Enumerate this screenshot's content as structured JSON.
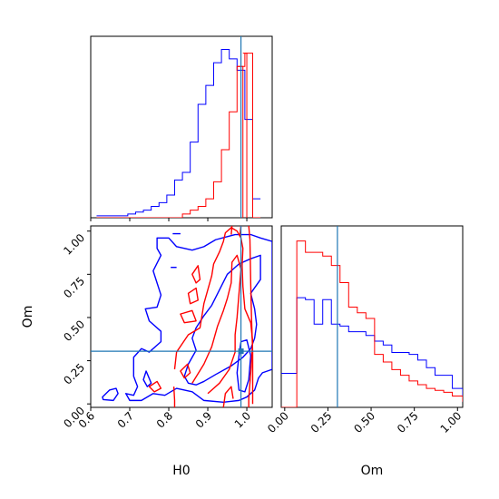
{
  "chart_data": {
    "type": "corner",
    "colors": {
      "series_a": "#0000ff",
      "series_b": "#ff0000",
      "truth": "#1f77b4"
    },
    "truth": {
      "H0": 0.985,
      "Om": 0.305
    },
    "labels": {
      "H0": "H0",
      "Om": "Om"
    },
    "ticks": {
      "H0": [
        "0.6",
        "0.7",
        "0.8",
        "0.9",
        "1.0"
      ],
      "Om": [
        "0.00",
        "0.25",
        "0.50",
        "0.75",
        "1.00"
      ]
    },
    "h0_hist": {
      "range": [
        0.6,
        1.065
      ],
      "bin_edges": [
        0.615,
        0.635,
        0.655,
        0.675,
        0.695,
        0.715,
        0.735,
        0.755,
        0.775,
        0.795,
        0.815,
        0.835,
        0.855,
        0.875,
        0.895,
        0.915,
        0.935,
        0.955,
        0.975,
        0.995,
        1.015,
        1.035
      ],
      "blue": [
        1,
        1,
        1,
        1,
        2,
        3,
        4,
        6,
        8,
        12,
        20,
        24,
        40,
        60,
        70,
        82,
        89,
        84,
        78,
        52,
        10
      ],
      "red": [
        0,
        0,
        0,
        0,
        0,
        0,
        0,
        0,
        0,
        0,
        0,
        2,
        4,
        6,
        10,
        19,
        36,
        56,
        80,
        87,
        0
      ],
      "red_tail": {
        "from": 0.985,
        "to": 0.99,
        "value": 80
      }
    },
    "om_hist": {
      "range": [
        -0.02,
        1.03
      ],
      "bin_edges": [
        -0.02,
        0.02,
        0.07,
        0.12,
        0.17,
        0.22,
        0.27,
        0.32,
        0.37,
        0.42,
        0.47,
        0.52,
        0.57,
        0.62,
        0.67,
        0.72,
        0.77,
        0.82,
        0.87,
        0.92,
        0.97,
        1.03
      ],
      "blue": [
        18,
        18,
        58,
        57,
        44,
        57,
        44,
        43,
        40,
        40,
        38,
        35,
        33,
        29,
        29,
        28,
        25,
        21,
        17,
        17,
        10,
        3
      ],
      "red": [
        0,
        0,
        88,
        82,
        82,
        80,
        75,
        66,
        53,
        50,
        47,
        28,
        24,
        20,
        17,
        14,
        12,
        10,
        9,
        8,
        6,
        3
      ]
    },
    "scatter_contours": {
      "blue": [
        [
          [
            0.63,
            0.04
          ],
          [
            0.648,
            0.08
          ],
          [
            0.665,
            0.09
          ],
          [
            0.67,
            0.06
          ],
          [
            0.658,
            0.02
          ],
          [
            0.632,
            0.025
          ]
        ],
        [
          [
            0.745,
            0.1
          ],
          [
            0.735,
            0.14
          ],
          [
            0.742,
            0.19
          ],
          [
            0.755,
            0.12
          ]
        ],
        [
          [
            0.69,
            0.06
          ],
          [
            0.71,
            0.05
          ],
          [
            0.72,
            0.1
          ],
          [
            0.71,
            0.16
          ],
          [
            0.71,
            0.27
          ],
          [
            0.73,
            0.32
          ],
          [
            0.75,
            0.3
          ],
          [
            0.78,
            0.36
          ],
          [
            0.78,
            0.42
          ],
          [
            0.75,
            0.48
          ],
          [
            0.74,
            0.55
          ],
          [
            0.77,
            0.56
          ],
          [
            0.78,
            0.63
          ],
          [
            0.77,
            0.7
          ],
          [
            0.76,
            0.77
          ],
          [
            0.78,
            0.86
          ],
          [
            0.77,
            0.9
          ],
          [
            0.77,
            0.96
          ],
          [
            0.8,
            0.96
          ],
          [
            0.82,
            0.91
          ],
          [
            0.86,
            0.89
          ],
          [
            0.89,
            0.91
          ],
          [
            0.92,
            0.95
          ],
          [
            0.97,
            0.98
          ],
          [
            1.01,
            0.98
          ],
          [
            1.035,
            0.96
          ],
          [
            1.065,
            0.94
          ],
          [
            1.065,
            0.2
          ],
          [
            1.04,
            0.18
          ],
          [
            1.03,
            0.15
          ],
          [
            1.02,
            0.08
          ],
          [
            1.0,
            0.04
          ],
          [
            0.98,
            0.02
          ],
          [
            0.94,
            0.01
          ],
          [
            0.89,
            0.02
          ],
          [
            0.86,
            0.07
          ],
          [
            0.84,
            0.08
          ],
          [
            0.82,
            0.09
          ],
          [
            0.79,
            0.05
          ],
          [
            0.76,
            0.06
          ],
          [
            0.73,
            0.02
          ],
          [
            0.7,
            0.02
          ]
        ],
        [
          [
            0.84,
            0.16
          ],
          [
            0.85,
            0.23
          ],
          [
            0.87,
            0.31
          ],
          [
            0.86,
            0.38
          ],
          [
            0.87,
            0.44
          ],
          [
            0.89,
            0.51
          ],
          [
            0.91,
            0.57
          ],
          [
            0.93,
            0.66
          ],
          [
            0.95,
            0.75
          ],
          [
            0.98,
            0.81
          ],
          [
            1.01,
            0.84
          ],
          [
            1.035,
            0.86
          ],
          [
            1.035,
            0.72
          ],
          [
            1.01,
            0.64
          ],
          [
            1.02,
            0.55
          ],
          [
            1.025,
            0.46
          ],
          [
            1.02,
            0.38
          ],
          [
            1.01,
            0.32
          ],
          [
            0.99,
            0.27
          ],
          [
            0.96,
            0.22
          ],
          [
            0.92,
            0.17
          ],
          [
            0.89,
            0.13
          ],
          [
            0.87,
            0.11
          ],
          [
            0.85,
            0.12
          ]
        ],
        [
          [
            0.98,
            0.08
          ],
          [
            0.975,
            0.18
          ],
          [
            0.98,
            0.28
          ],
          [
            0.985,
            0.36
          ],
          [
            1.0,
            0.37
          ],
          [
            1.01,
            0.28
          ],
          [
            1.005,
            0.14
          ],
          [
            0.995,
            0.07
          ]
        ],
        [
          [
            0.805,
            0.79
          ],
          [
            0.82,
            0.79
          ]
        ],
        [
          [
            0.81,
            0.985
          ],
          [
            0.83,
            0.985
          ]
        ]
      ],
      "red": [
        [
          [
            0.763,
            0.07
          ],
          [
            0.75,
            0.1
          ],
          [
            0.77,
            0.13
          ],
          [
            0.78,
            0.09
          ]
        ],
        [
          [
            0.84,
            0.15
          ],
          [
            0.83,
            0.19
          ],
          [
            0.848,
            0.23
          ],
          [
            0.855,
            0.18
          ]
        ],
        [
          [
            0.84,
            0.47
          ],
          [
            0.83,
            0.52
          ],
          [
            0.86,
            0.54
          ],
          [
            0.87,
            0.48
          ]
        ],
        [
          [
            0.855,
            0.58
          ],
          [
            0.85,
            0.64
          ],
          [
            0.87,
            0.67
          ],
          [
            0.875,
            0.6
          ]
        ],
        [
          [
            0.87,
            0.7
          ],
          [
            0.86,
            0.75
          ],
          [
            0.875,
            0.8
          ],
          [
            0.88,
            0.72
          ]
        ],
        [
          [
            0.813,
            0.1
          ],
          [
            0.815,
            0.02
          ],
          [
            0.815,
            -0.02
          ]
        ],
        [
          [
            0.815,
            0.2
          ],
          [
            0.82,
            0.3
          ],
          [
            0.85,
            0.4
          ],
          [
            0.88,
            0.44
          ],
          [
            0.89,
            0.58
          ],
          [
            0.9,
            0.66
          ],
          [
            0.91,
            0.74
          ],
          [
            0.915,
            0.81
          ],
          [
            0.93,
            0.88
          ],
          [
            0.94,
            0.94
          ],
          [
            0.945,
            0.99
          ],
          [
            0.96,
            1.02
          ],
          [
            0.975,
            1.0
          ],
          [
            0.985,
            0.96
          ],
          [
            0.99,
            0.9
          ],
          [
            0.988,
            0.8
          ],
          [
            0.99,
            0.68
          ],
          [
            0.995,
            0.55
          ],
          [
            1.01,
            0.47
          ],
          [
            1.015,
            0.36
          ],
          [
            1.01,
            0.18
          ],
          [
            1.005,
            0.03
          ],
          [
            1.005,
            -0.02
          ]
        ],
        [
          [
            0.86,
            0.12
          ],
          [
            0.89,
            0.23
          ],
          [
            0.91,
            0.33
          ],
          [
            0.925,
            0.45
          ],
          [
            0.94,
            0.54
          ],
          [
            0.95,
            0.61
          ],
          [
            0.96,
            0.7
          ],
          [
            0.962,
            0.82
          ],
          [
            0.975,
            0.86
          ],
          [
            0.985,
            0.78
          ],
          [
            0.98,
            0.64
          ],
          [
            0.975,
            0.5
          ],
          [
            0.97,
            0.4
          ],
          [
            0.97,
            0.3
          ],
          [
            0.955,
            0.2
          ],
          [
            0.93,
            0.12
          ],
          [
            0.9,
            0.06
          ]
        ],
        [
          [
            0.94,
            -0.02
          ],
          [
            0.945,
            0.06
          ],
          [
            0.96,
            0.1
          ],
          [
            0.965,
            0.03
          ]
        ],
        [
          [
            0.96,
            0.98
          ],
          [
            0.962,
            1.03
          ]
        ],
        [
          [
            0.982,
            0.97
          ],
          [
            0.985,
            1.03
          ]
        ],
        [
          [
            1.015,
            0.0
          ],
          [
            1.015,
            0.3
          ],
          [
            1.012,
            0.5
          ],
          [
            1.01,
            0.7
          ],
          [
            1.008,
            0.95
          ],
          [
            1.005,
            1.03
          ]
        ]
      ]
    }
  }
}
